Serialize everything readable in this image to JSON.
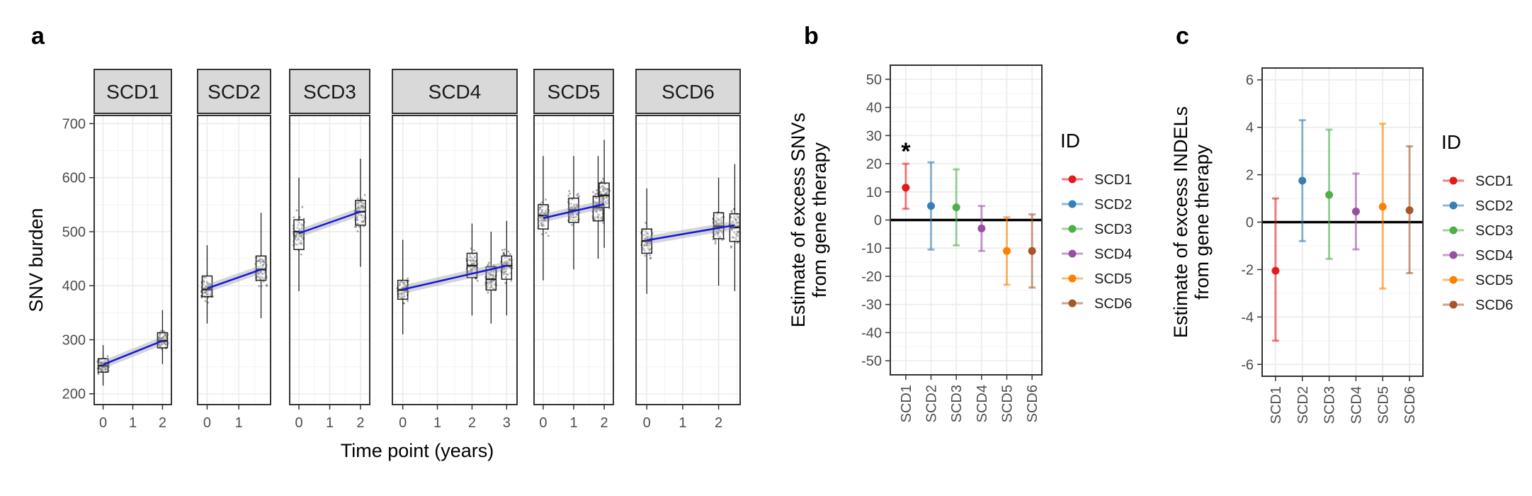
{
  "colors": {
    "SCD1": "#E41A1C",
    "SCD2": "#377EB8",
    "SCD3": "#4DAF4A",
    "SCD4": "#984EA3",
    "SCD5": "#FF7F00",
    "SCD6": "#A65628",
    "trend_line": "#1515E0",
    "strip_bg": "#D9D9D9",
    "grid": "#EBEBEB"
  },
  "chart_data": [
    {
      "panel_label": "a",
      "type": "scatter",
      "ylabel": "SNV burden",
      "xlabel": "Time point (years)",
      "ylim": [
        180,
        715
      ],
      "yticks": [
        200,
        300,
        400,
        500,
        600,
        700
      ],
      "facets": [
        {
          "strip": "SCD1",
          "xlim": [
            -0.3,
            2.3
          ],
          "xticks": [
            0,
            1,
            2
          ],
          "boxes": [
            {
              "x": 0,
              "q1": 240,
              "median": 252,
              "q3": 265,
              "lo": 215,
              "hi": 290
            },
            {
              "x": 2,
              "q1": 285,
              "median": 298,
              "q3": 313,
              "lo": 255,
              "hi": 355
            }
          ],
          "trend": {
            "x": [
              0,
              2
            ],
            "y": [
              254,
              298
            ]
          }
        },
        {
          "strip": "SCD2",
          "xlim": [
            -0.3,
            2.0
          ],
          "xticks": [
            0,
            1
          ],
          "boxes": [
            {
              "x": 0,
              "q1": 380,
              "median": 393,
              "q3": 418,
              "lo": 330,
              "hi": 475
            },
            {
              "x": 1.7,
              "q1": 410,
              "median": 430,
              "q3": 455,
              "lo": 340,
              "hi": 535
            }
          ],
          "trend": {
            "x": [
              0,
              1.7
            ],
            "y": [
              395,
              430
            ]
          }
        },
        {
          "strip": "SCD3",
          "xlim": [
            -0.3,
            2.3
          ],
          "xticks": [
            0,
            1,
            2
          ],
          "boxes": [
            {
              "x": 0,
              "q1": 467,
              "median": 500,
              "q3": 522,
              "lo": 390,
              "hi": 600
            },
            {
              "x": 2,
              "q1": 512,
              "median": 537,
              "q3": 558,
              "lo": 435,
              "hi": 635
            }
          ],
          "trend": {
            "x": [
              0,
              2
            ],
            "y": [
              497,
              537
            ]
          }
        },
        {
          "strip": "SCD4",
          "xlim": [
            -0.3,
            3.3
          ],
          "xticks": [
            0,
            1,
            2,
            3
          ],
          "boxes": [
            {
              "x": 0,
              "q1": 375,
              "median": 392,
              "q3": 410,
              "lo": 310,
              "hi": 485
            },
            {
              "x": 2,
              "q1": 415,
              "median": 437,
              "q3": 460,
              "lo": 345,
              "hi": 515
            },
            {
              "x": 2.55,
              "q1": 392,
              "median": 412,
              "q3": 435,
              "lo": 330,
              "hi": 500
            },
            {
              "x": 3,
              "q1": 412,
              "median": 437,
              "q3": 455,
              "lo": 345,
              "hi": 520
            }
          ],
          "trend": {
            "x": [
              0,
              3
            ],
            "y": [
              393,
              437
            ]
          }
        },
        {
          "strip": "SCD5",
          "xlim": [
            -0.3,
            2.3
          ],
          "xticks": [
            0,
            1,
            2
          ],
          "boxes": [
            {
              "x": 0,
              "q1": 505,
              "median": 530,
              "q3": 550,
              "lo": 410,
              "hi": 640
            },
            {
              "x": 1,
              "q1": 517,
              "median": 540,
              "q3": 562,
              "lo": 430,
              "hi": 640
            },
            {
              "x": 1.8,
              "q1": 520,
              "median": 545,
              "q3": 565,
              "lo": 450,
              "hi": 640
            },
            {
              "x": 2,
              "q1": 545,
              "median": 567,
              "q3": 590,
              "lo": 470,
              "hi": 670
            }
          ],
          "trend": {
            "x": [
              0,
              2
            ],
            "y": [
              525,
              551
            ]
          }
        },
        {
          "strip": "SCD6",
          "xlim": [
            -0.3,
            2.6
          ],
          "xticks": [
            0,
            1,
            2
          ],
          "boxes": [
            {
              "x": 0,
              "q1": 460,
              "median": 483,
              "q3": 505,
              "lo": 385,
              "hi": 580
            },
            {
              "x": 2,
              "q1": 487,
              "median": 510,
              "q3": 535,
              "lo": 400,
              "hi": 600
            },
            {
              "x": 2.45,
              "q1": 482,
              "median": 508,
              "q3": 533,
              "lo": 390,
              "hi": 625
            }
          ],
          "trend": {
            "x": [
              0,
              2.45
            ],
            "y": [
              484,
              512
            ]
          }
        }
      ]
    },
    {
      "panel_label": "b",
      "type": "scatter",
      "ylabel": [
        "Estimate of excess SNVs",
        "from gene therapy"
      ],
      "ylim": [
        -55,
        55
      ],
      "yticks": [
        -50,
        -40,
        -30,
        -20,
        -10,
        0,
        10,
        20,
        30,
        40,
        50
      ],
      "categories": [
        "SCD1",
        "SCD2",
        "SCD3",
        "SCD4",
        "SCD5",
        "SCD6"
      ],
      "estimates": [
        11.5,
        5,
        4.5,
        -3,
        -11,
        -11
      ],
      "ci_low": [
        4,
        -10.5,
        -9,
        -11,
        -23,
        -24
      ],
      "ci_high": [
        20,
        20.5,
        18,
        5,
        1,
        2
      ],
      "annotation": "*",
      "legend_title": "ID"
    },
    {
      "panel_label": "c",
      "type": "scatter",
      "ylabel": [
        "Estimate of excess INDELs",
        "from gene therapy"
      ],
      "ylim": [
        -6.5,
        6.5
      ],
      "yticks": [
        -6,
        -4,
        -2,
        0,
        2,
        4,
        6
      ],
      "categories": [
        "SCD1",
        "SCD2",
        "SCD3",
        "SCD4",
        "SCD5",
        "SCD6"
      ],
      "estimates": [
        -2.05,
        1.75,
        1.15,
        0.45,
        0.65,
        0.5
      ],
      "ci_low": [
        -5,
        -0.8,
        -1.55,
        -1.15,
        -2.8,
        -2.15
      ],
      "ci_high": [
        1,
        4.3,
        3.9,
        2.05,
        4.15,
        3.2
      ],
      "legend_title": "ID"
    }
  ]
}
